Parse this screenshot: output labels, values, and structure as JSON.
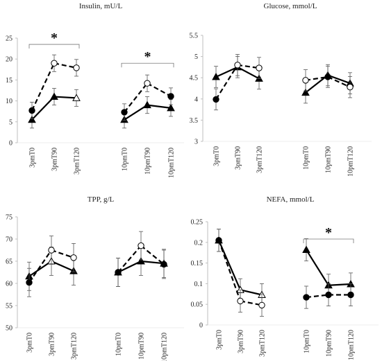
{
  "chart_data": [
    {
      "type": "line",
      "title": "Insulin, mU/L",
      "categories": [
        "3pmT0",
        "3pmT90",
        "3pmT120",
        "10pmT0",
        "10pmT90",
        "10pmT120"
      ],
      "yticks": [
        "0",
        "5",
        "10",
        "15",
        "20",
        "25"
      ],
      "ylim": [
        0,
        25
      ],
      "series": [
        {
          "marker": "filled-triangle",
          "line": "solid",
          "values": [
            5.5,
            11.0,
            10.7,
            5.5,
            9.0,
            8.3
          ],
          "errors": [
            2.0,
            2.0,
            2.0,
            2.0,
            2.0,
            2.0
          ]
        },
        {
          "marker": "filled-circle",
          "line": "dashed",
          "values": [
            7.7,
            19.0,
            17.9,
            7.3,
            14.2,
            11.1
          ],
          "errors": [
            2.0,
            2.0,
            2.0,
            2.0,
            2.0,
            2.0
          ]
        }
      ],
      "annotations": [
        {
          "label": "*",
          "from": "3pmT0",
          "to": "3pmT120",
          "y": 23.5
        },
        {
          "label": "*",
          "from": "10pmT0",
          "to": "10pmT120",
          "y": 19.0
        }
      ]
    },
    {
      "type": "line",
      "title": "Glucose, mmol/L",
      "categories": [
        "3pmT0",
        "3pmT90",
        "3pmT120",
        "10pmT0",
        "10pmT90",
        "10pmT120"
      ],
      "yticks": [
        "3",
        "3.5",
        "4",
        "4.5",
        "5",
        "5.5"
      ],
      "ylim": [
        3,
        5.5
      ],
      "series": [
        {
          "marker": "filled-triangle",
          "line": "solid",
          "values": [
            4.52,
            4.75,
            4.48,
            4.15,
            4.56,
            4.37
          ],
          "errors": [
            0.25,
            0.25,
            0.25,
            0.25,
            0.25,
            0.25
          ]
        },
        {
          "marker": "filled-circle",
          "line": "dashed",
          "values": [
            3.99,
            4.8,
            4.73,
            4.44,
            4.52,
            4.28
          ],
          "errors": [
            0.25,
            0.25,
            0.25,
            0.25,
            0.25,
            0.25
          ]
        }
      ],
      "annotations": []
    },
    {
      "type": "line",
      "title": "TPP, g/L",
      "categories": [
        "3pmT0",
        "3pmT90",
        "3pmT120",
        "10pmT0",
        "10pmT90",
        "10pmT120"
      ],
      "yticks": [
        "50",
        "55",
        "60",
        "65",
        "70",
        "75"
      ],
      "ylim": [
        50,
        75
      ],
      "series": [
        {
          "marker": "filled-triangle",
          "line": "solid",
          "values": [
            61.6,
            65.0,
            62.8,
            62.5,
            65.0,
            64.5
          ],
          "errors": [
            3.2,
            3.2,
            3.2,
            3.2,
            3.2,
            3.2
          ]
        },
        {
          "marker": "filled-circle",
          "line": "dashed",
          "values": [
            60.2,
            67.5,
            65.8,
            62.5,
            68.5,
            64.3
          ],
          "errors": [
            3.2,
            3.2,
            3.2,
            3.2,
            3.2,
            3.2
          ]
        }
      ],
      "annotations": []
    },
    {
      "type": "line",
      "title": "NEFA, mmol/L",
      "categories": [
        "3pmT0",
        "3pmT90",
        "3pmT120",
        "10pmT0",
        "10pmT90",
        "10pmT120"
      ],
      "yticks": [
        "0",
        "0.05",
        "0.1",
        "0.15",
        "0.2",
        "0.25"
      ],
      "ylim": [
        0,
        0.25
      ],
      "series": [
        {
          "marker": "filled-triangle",
          "line": "solid",
          "values": [
            0.205,
            0.085,
            0.073,
            0.182,
            0.096,
            0.099
          ],
          "errors": [
            0.027,
            0.027,
            0.027,
            0.027,
            0.027,
            0.027
          ]
        },
        {
          "marker": "filled-circle",
          "line": "dashed",
          "values": [
            0.205,
            0.058,
            0.048,
            0.067,
            0.073,
            0.073
          ],
          "errors": [
            0.027,
            0.027,
            0.027,
            0.027,
            0.027,
            0.027
          ]
        }
      ],
      "annotations": [
        {
          "label": "*",
          "from": "10pmT0",
          "to": "10pmT120",
          "y": 0.208
        }
      ]
    }
  ]
}
